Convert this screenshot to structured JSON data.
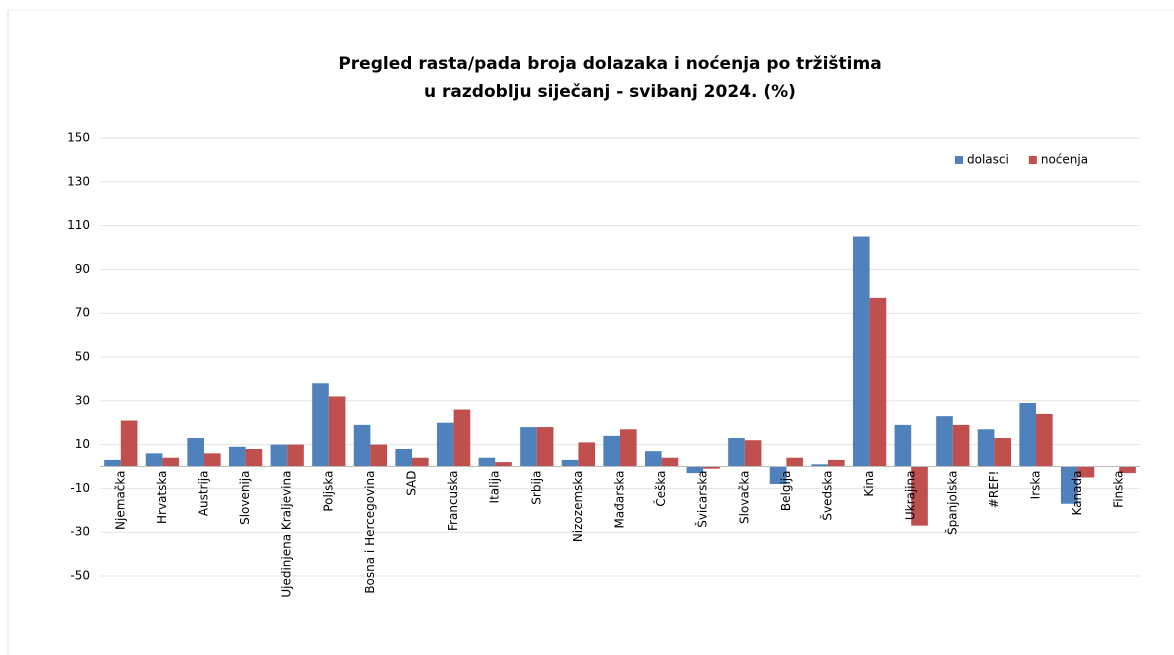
{
  "chart_data": {
    "type": "bar",
    "title": [
      "Pregled rasta/pada broja dolazaka i noćenja po tržištima",
      "u razdoblju siječanj - svibanj 2024. (%)"
    ],
    "categories": [
      "Njemačka",
      "Hrvatska",
      "Austrija",
      "Slovenija",
      "Ujedinjena Kraljevina",
      "Poljska",
      "Bosna i Hercegovina",
      "SAD",
      "Francuska",
      "Italija",
      "Srbija",
      "Nizozemska",
      "Mađarska",
      "Češka",
      "Švicarska",
      "Slovačka",
      "Belgija",
      "Švedska",
      "Kina",
      "Ukrajina",
      "Španjolska",
      "#REF!",
      "Irska",
      "Kanada",
      "Finska"
    ],
    "series": [
      {
        "name": "dolasci",
        "color": "#4f81bd",
        "values": [
          3,
          6,
          13,
          9,
          10,
          38,
          19,
          8,
          20,
          4,
          18,
          3,
          14,
          7,
          -3,
          13,
          -8,
          1,
          105,
          19,
          23,
          17,
          29,
          -17,
          0
        ]
      },
      {
        "name": "noćenja",
        "color": "#c0504d",
        "values": [
          21,
          4,
          6,
          8,
          10,
          32,
          10,
          4,
          26,
          2,
          18,
          11,
          17,
          4,
          -1,
          12,
          4,
          3,
          77,
          -27,
          19,
          13,
          24,
          -5,
          -3
        ]
      }
    ],
    "ylim": [
      -50,
      150
    ],
    "yticks": [
      -50,
      -30,
      -10,
      10,
      30,
      50,
      70,
      90,
      110,
      130,
      150
    ],
    "grid": true,
    "legend": "top-right"
  }
}
